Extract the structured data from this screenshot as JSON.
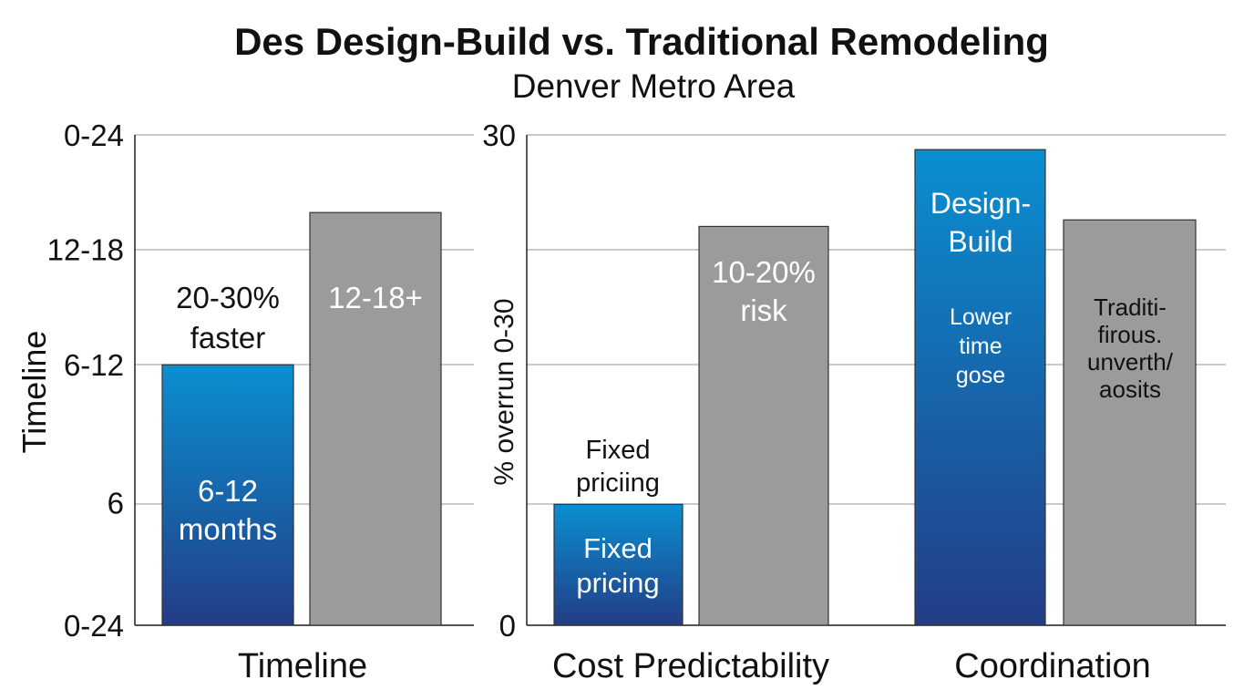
{
  "chart_data": [
    {
      "type": "bar",
      "title": "Des Design-Build vs. Traditional Remodeling",
      "subtitle": "Denver Metro Area",
      "ylabel": "Timeline",
      "ylim": [
        0,
        24
      ],
      "yticks": [
        {
          "label": "0-24",
          "value": 0
        },
        {
          "label": "6",
          "value": 6
        },
        {
          "label": "6-12",
          "value": 12.75
        },
        {
          "label": "12-18",
          "value": 18.4
        },
        {
          "label": "0-24",
          "value": 24
        }
      ],
      "grid": true,
      "categories": [
        "Timeline"
      ],
      "bars": [
        {
          "category": "Timeline",
          "kind": "design-build",
          "value": 12.75,
          "inner_label": [
            "6-12",
            "months"
          ],
          "top_label": [
            "20-30%",
            "faster"
          ]
        },
        {
          "category": "Timeline",
          "kind": "traditional",
          "value": 20.2,
          "inner_label": [
            "12-18+"
          ]
        }
      ]
    },
    {
      "type": "bar",
      "ylabel": "% overrun 0-30",
      "ylim": [
        0,
        30
      ],
      "yticks": [
        {
          "label": "0",
          "value": 0
        },
        {
          "label": "30",
          "value": 30
        }
      ],
      "gridlines": [
        0,
        7.4,
        15.9,
        23,
        30
      ],
      "grid": true,
      "categories": [
        "Cost Predictability",
        "Coordination"
      ],
      "bars": [
        {
          "category": "Cost Predictability",
          "kind": "design-build",
          "value": 7.4,
          "inner_label": [
            "Fixed",
            "pricing"
          ],
          "top_label": [
            "Fixed",
            "priciing"
          ]
        },
        {
          "category": "Cost Predictability",
          "kind": "traditional",
          "value": 24.4,
          "inner_label": [
            "10-20%",
            "risk"
          ]
        },
        {
          "category": "Coordination",
          "kind": "design-build",
          "value": 29.1,
          "inner_label": [
            "Design-",
            "Build"
          ],
          "inner_sublabel": [
            "Lower",
            "time",
            "gose"
          ]
        },
        {
          "category": "Coordination",
          "kind": "traditional",
          "value": 24.8,
          "inner_label": [
            "Traditi-",
            "firous.",
            "unverth/",
            "aosits"
          ]
        }
      ]
    }
  ],
  "colors": {
    "design_build_top": "#0a8fd1",
    "design_build_bottom": "#233d86",
    "traditional": "#9b9b9d",
    "grid": "#aaaaaa",
    "text": "#111111"
  }
}
